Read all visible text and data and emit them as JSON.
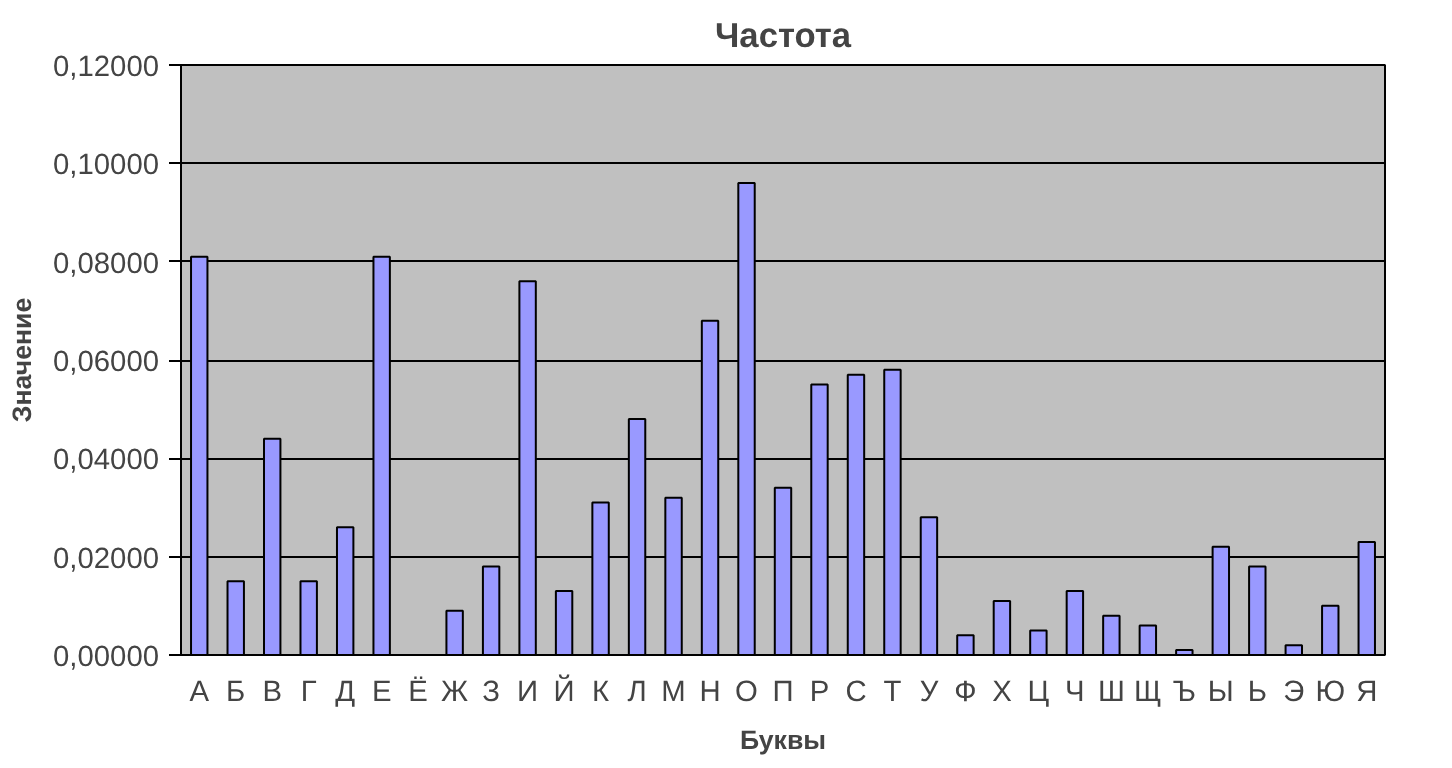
{
  "chart_data": {
    "type": "bar",
    "title": "Частота",
    "xlabel": "Буквы",
    "ylabel": "Значение",
    "categories": [
      "А",
      "Б",
      "В",
      "Г",
      "Д",
      "Е",
      "Ё",
      "Ж",
      "З",
      "И",
      "Й",
      "К",
      "Л",
      "М",
      "Н",
      "О",
      "П",
      "Р",
      "С",
      "Т",
      "У",
      "Ф",
      "Х",
      "Ц",
      "Ч",
      "Ш",
      "Щ",
      "Ъ",
      "Ы",
      "Ь",
      "Э",
      "Ю",
      "Я"
    ],
    "values": [
      0.081,
      0.015,
      0.044,
      0.015,
      0.026,
      0.081,
      null,
      0.009,
      0.018,
      0.076,
      0.013,
      0.031,
      0.048,
      0.032,
      0.068,
      0.096,
      0.034,
      0.055,
      0.057,
      0.058,
      0.028,
      0.004,
      0.011,
      0.005,
      0.013,
      0.008,
      0.006,
      0.001,
      0.022,
      0.018,
      0.002,
      0.01,
      0.023
    ],
    "color": "#9999ff",
    "ylim": [
      0,
      0.12
    ],
    "yticks": [
      {
        "value": 0,
        "label": "0,00000"
      },
      {
        "value": 0.02,
        "label": "0,02000"
      },
      {
        "value": 0.04,
        "label": "0,04000"
      },
      {
        "value": 0.06,
        "label": "0,06000"
      },
      {
        "value": 0.08,
        "label": "0,08000"
      },
      {
        "value": 0.1,
        "label": "0,10000"
      },
      {
        "value": 0.12,
        "label": "0,12000"
      }
    ],
    "grid": "y"
  }
}
